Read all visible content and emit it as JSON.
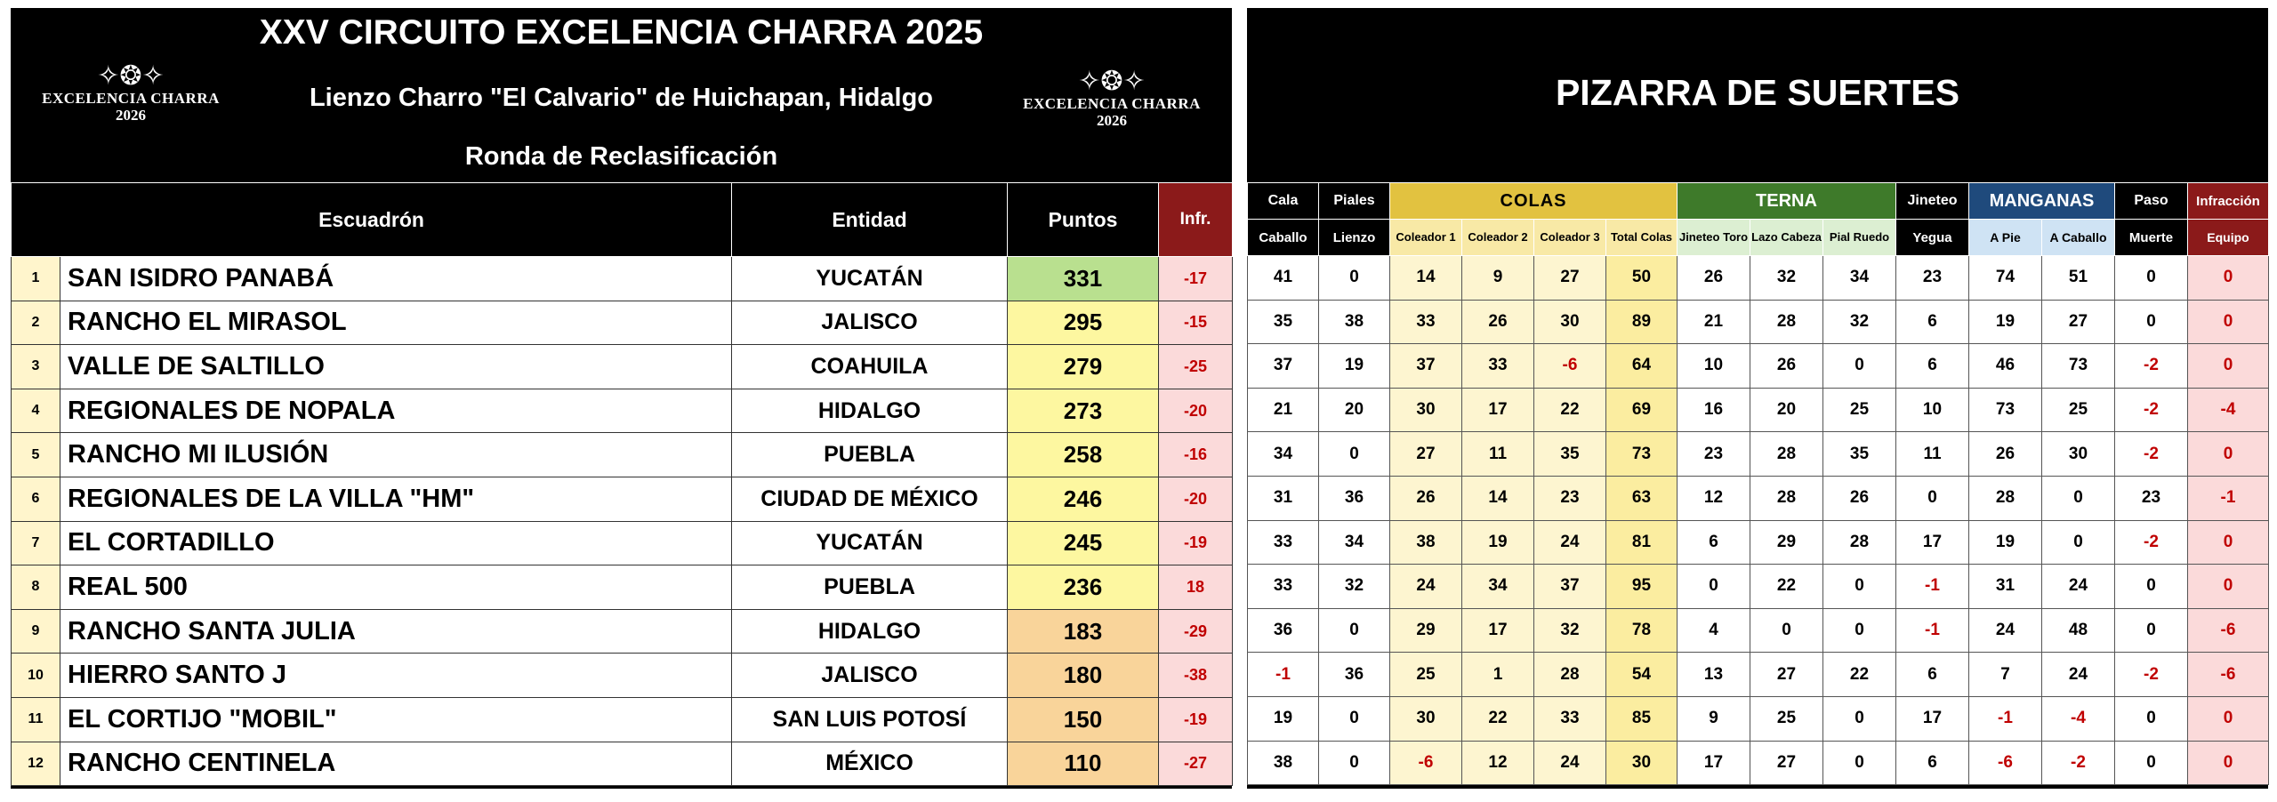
{
  "left": {
    "title": "XXV CIRCUITO EXCELENCIA CHARRA 2025",
    "subtitle": "Lienzo Charro \"El Calvario\" de Huichapan, Hidalgo",
    "round": "Ronda de Reclasificación",
    "logo": {
      "line1": "EXCELENCIA CHARRA",
      "line2": "2026"
    },
    "headers": {
      "escuadron": "Escuadrón",
      "entidad": "Entidad",
      "puntos": "Puntos",
      "infr": "Infr."
    },
    "rows": [
      {
        "pos": "1",
        "escuadron": "SAN ISIDRO PANABÁ",
        "entidad": "YUCATÁN",
        "puntos": "331",
        "infr": "-17",
        "color": "#b9e08f"
      },
      {
        "pos": "2",
        "escuadron": "RANCHO EL MIRASOL",
        "entidad": "JALISCO",
        "puntos": "295",
        "infr": "-15",
        "color": "#fdf7a0"
      },
      {
        "pos": "3",
        "escuadron": "VALLE DE SALTILLO",
        "entidad": "COAHUILA",
        "puntos": "279",
        "infr": "-25",
        "color": "#fdf7a0"
      },
      {
        "pos": "4",
        "escuadron": "REGIONALES DE NOPALA",
        "entidad": "HIDALGO",
        "puntos": "273",
        "infr": "-20",
        "color": "#fdf7a0"
      },
      {
        "pos": "5",
        "escuadron": "RANCHO MI ILUSIÓN",
        "entidad": "PUEBLA",
        "puntos": "258",
        "infr": "-16",
        "color": "#fdf7a0"
      },
      {
        "pos": "6",
        "escuadron": "REGIONALES DE LA VILLA \"HM\"",
        "entidad": "CIUDAD DE MÉXICO",
        "puntos": "246",
        "infr": "-20",
        "color": "#fdf7a0"
      },
      {
        "pos": "7",
        "escuadron": "EL CORTADILLO",
        "entidad": "YUCATÁN",
        "puntos": "245",
        "infr": "-19",
        "color": "#fdf7a0"
      },
      {
        "pos": "8",
        "escuadron": "REAL 500",
        "entidad": "PUEBLA",
        "puntos": "236",
        "infr": "18",
        "color": "#fdf7a0"
      },
      {
        "pos": "9",
        "escuadron": "RANCHO SANTA JULIA",
        "entidad": "HIDALGO",
        "puntos": "183",
        "infr": "-29",
        "color": "#f9d49a"
      },
      {
        "pos": "10",
        "escuadron": "HIERRO SANTO J",
        "entidad": "JALISCO",
        "puntos": "180",
        "infr": "-38",
        "color": "#f9d49a"
      },
      {
        "pos": "11",
        "escuadron": "EL CORTIJO \"MOBIL\"",
        "entidad": "SAN LUIS POTOSÍ",
        "puntos": "150",
        "infr": "-19",
        "color": "#f9d49a"
      },
      {
        "pos": "12",
        "escuadron": "RANCHO CENTINELA",
        "entidad": "MÉXICO",
        "puntos": "110",
        "infr": "-27",
        "color": "#f9d49a"
      }
    ]
  },
  "right": {
    "title": "PIZARRA DE SUERTES",
    "groups": {
      "cala": "Cala",
      "piales": "Piales",
      "colas": "COLAS",
      "terna": "TERNA",
      "jineteo": "Jineteo",
      "manganas": "MANGANAS",
      "paso": "Paso",
      "infraccion": "Infracción"
    },
    "subheaders": {
      "caballo": "Caballo",
      "lienzo": "Lienzo",
      "col1": "Coleador 1",
      "col2": "Coleador 2",
      "col3": "Coleador 3",
      "total": "Total Colas",
      "jinToro": "Jineteo Toro",
      "lazo": "Lazo Cabeza",
      "pial": "Pial Ruedo",
      "yegua": "Yegua",
      "apie": "A Pie",
      "acaballo": "A Caballo",
      "muerte": "Muerte",
      "equipo": "Equipo"
    },
    "rows": [
      [
        "41",
        "0",
        "14",
        "9",
        "27",
        "50",
        "26",
        "32",
        "34",
        "23",
        "74",
        "51",
        "0",
        "0"
      ],
      [
        "35",
        "38",
        "33",
        "26",
        "30",
        "89",
        "21",
        "28",
        "32",
        "6",
        "19",
        "27",
        "0",
        "0"
      ],
      [
        "37",
        "19",
        "37",
        "33",
        "-6",
        "64",
        "10",
        "26",
        "0",
        "6",
        "46",
        "73",
        "-2",
        "0"
      ],
      [
        "21",
        "20",
        "30",
        "17",
        "22",
        "69",
        "16",
        "20",
        "25",
        "10",
        "73",
        "25",
        "-2",
        "-4"
      ],
      [
        "34",
        "0",
        "27",
        "11",
        "35",
        "73",
        "23",
        "28",
        "35",
        "11",
        "26",
        "30",
        "-2",
        "0"
      ],
      [
        "31",
        "36",
        "26",
        "14",
        "23",
        "63",
        "12",
        "28",
        "26",
        "0",
        "28",
        "0",
        "23",
        "-1"
      ],
      [
        "33",
        "34",
        "38",
        "19",
        "24",
        "81",
        "6",
        "29",
        "28",
        "17",
        "19",
        "0",
        "-2",
        "0"
      ],
      [
        "33",
        "32",
        "24",
        "34",
        "37",
        "95",
        "0",
        "22",
        "0",
        "-1",
        "31",
        "24",
        "0",
        "0"
      ],
      [
        "36",
        "0",
        "29",
        "17",
        "32",
        "78",
        "4",
        "0",
        "0",
        "-1",
        "24",
        "48",
        "0",
        "-6"
      ],
      [
        "-1",
        "36",
        "25",
        "1",
        "28",
        "54",
        "13",
        "27",
        "22",
        "6",
        "7",
        "24",
        "-2",
        "-6"
      ],
      [
        "19",
        "0",
        "30",
        "22",
        "33",
        "85",
        "9",
        "25",
        "0",
        "17",
        "-1",
        "-4",
        "0",
        "0"
      ],
      [
        "38",
        "0",
        "-6",
        "12",
        "24",
        "30",
        "17",
        "27",
        "0",
        "6",
        "-6",
        "-2",
        "0",
        "0"
      ]
    ]
  }
}
